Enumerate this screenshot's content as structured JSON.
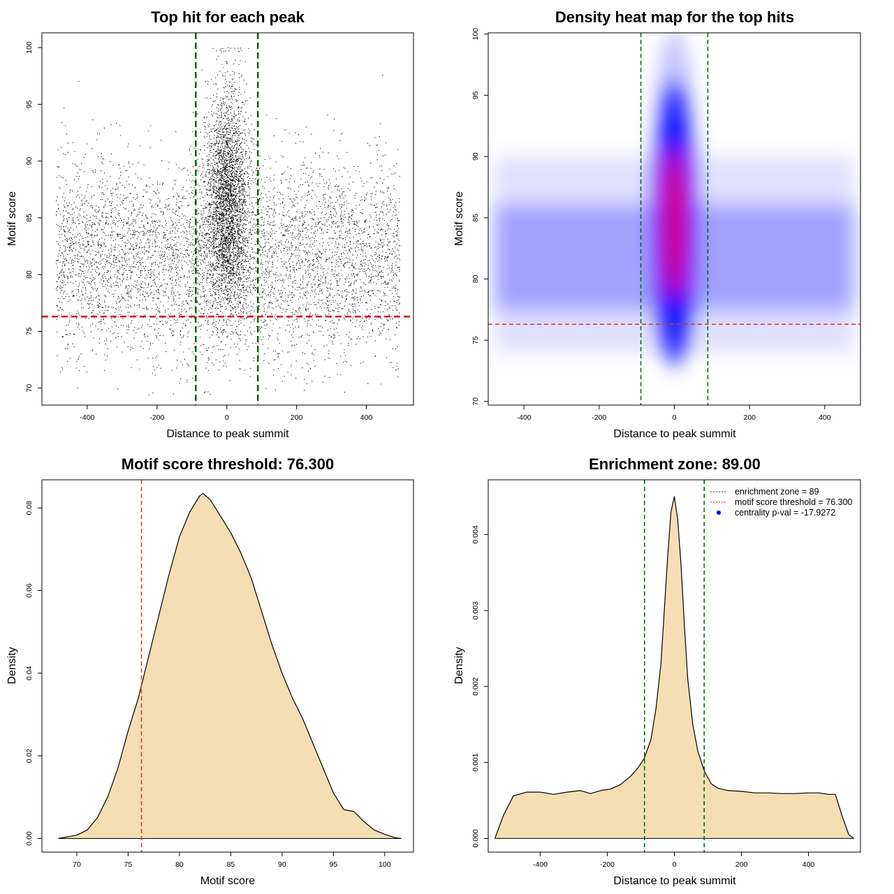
{
  "chart_data": [
    {
      "type": "scatter",
      "title": "Top hit for each peak",
      "xlabel": "Distance to peak summit",
      "ylabel": "Motif score",
      "xlim": [
        -530,
        535
      ],
      "ylim": [
        68.5,
        101.3
      ],
      "xticks": [
        -400,
        -200,
        0,
        200,
        400
      ],
      "yticks": [
        70,
        75,
        80,
        85,
        90,
        95,
        100
      ],
      "enrichment_zone": 89,
      "threshold": 76.3,
      "point_distribution": {
        "background": {
          "x_range": [
            -490,
            495
          ],
          "score_mean": 81.5,
          "score_sd": 4.3,
          "share": 0.62
        },
        "central": {
          "x_mean": 0,
          "x_sd": 30,
          "score_mean": 86.2,
          "score_sd": 4.8,
          "share": 0.38
        },
        "score_max": 100
      }
    },
    {
      "type": "heatmap",
      "title": "Density heat map for the top hits",
      "xlabel": "Distance to peak summit",
      "ylabel": "Motif score",
      "xlim": [
        -495,
        495
      ],
      "ylim": [
        69.7,
        100.1
      ],
      "xticks": [
        -400,
        -200,
        0,
        200,
        400
      ],
      "yticks": [
        70,
        75,
        80,
        85,
        90,
        95,
        100
      ],
      "enrichment_zone": 89,
      "threshold": 76.3,
      "color_scale": [
        "#ffffff",
        "#0000ff",
        "#ff0000"
      ],
      "peak": {
        "x": 0,
        "score": 84.5
      }
    },
    {
      "type": "area",
      "title": "Motif score threshold: 76.300",
      "xlabel": "Motif score",
      "ylabel": "Density",
      "xlim": [
        66.6,
        102.8
      ],
      "ylim": [
        -0.0033,
        0.0868
      ],
      "xticks": [
        70,
        75,
        80,
        85,
        90,
        95,
        100
      ],
      "yticks": [
        0.0,
        0.02,
        0.04,
        0.06,
        0.08
      ],
      "ytick_labels": [
        "0.00",
        "0.02",
        "0.04",
        "0.06",
        "0.08"
      ],
      "threshold": 76.3,
      "fill": "#f5deb3",
      "x": [
        68.2,
        70,
        71,
        72,
        73,
        74,
        75,
        76,
        77,
        78,
        79,
        80,
        81,
        82,
        82.3,
        83,
        84,
        85,
        86,
        87,
        88,
        89,
        90,
        91,
        92,
        93,
        94,
        95,
        96,
        97,
        98,
        99,
        100,
        101,
        101.6
      ],
      "y": [
        0.0,
        0.0008,
        0.002,
        0.005,
        0.01,
        0.017,
        0.026,
        0.034,
        0.044,
        0.054,
        0.064,
        0.073,
        0.079,
        0.083,
        0.0835,
        0.082,
        0.078,
        0.074,
        0.069,
        0.063,
        0.055,
        0.047,
        0.04,
        0.034,
        0.029,
        0.023,
        0.017,
        0.011,
        0.007,
        0.0065,
        0.004,
        0.002,
        0.001,
        0.0002,
        0.0
      ]
    },
    {
      "type": "area",
      "title": "Enrichment zone: 89.00",
      "xlabel": "Distance to peak summit",
      "ylabel": "Density",
      "xlim": [
        -555,
        555
      ],
      "ylim": [
        -0.00018,
        0.00472
      ],
      "xticks": [
        -400,
        -200,
        0,
        200,
        400
      ],
      "yticks": [
        0.0,
        0.001,
        0.002,
        0.003,
        0.004
      ],
      "ytick_labels": [
        "0.000",
        "0.001",
        "0.002",
        "0.003",
        "0.004"
      ],
      "enrichment_zone": 89,
      "fill": "#f5deb3",
      "legend": [
        {
          "label": "enrichment zone = 89",
          "color": "#006400",
          "style": "dotted-line"
        },
        {
          "label": "motif score threshold = 76.300",
          "color": "#ff0000",
          "style": "dotted-line"
        },
        {
          "label": "centrality p-val = -17.9272",
          "color": "#0000ff",
          "style": "point"
        }
      ],
      "legend_position": "top-right",
      "x": [
        -535,
        -510,
        -480,
        -440,
        -400,
        -360,
        -320,
        -280,
        -250,
        -220,
        -190,
        -160,
        -130,
        -110,
        -90,
        -70,
        -55,
        -40,
        -30,
        -20,
        -10,
        0,
        10,
        20,
        30,
        40,
        55,
        70,
        90,
        110,
        130,
        160,
        200,
        240,
        280,
        320,
        360,
        400,
        430,
        460,
        480,
        500,
        520,
        535
      ],
      "y": [
        0.0,
        0.0003,
        0.00056,
        0.00061,
        0.00061,
        0.00058,
        0.00061,
        0.00063,
        0.00059,
        0.00063,
        0.00065,
        0.00071,
        0.00082,
        0.00092,
        0.00105,
        0.0013,
        0.0017,
        0.0023,
        0.003,
        0.0037,
        0.0043,
        0.0045,
        0.0042,
        0.0036,
        0.0028,
        0.0021,
        0.0015,
        0.00115,
        0.00088,
        0.00072,
        0.00066,
        0.00063,
        0.00062,
        0.0006,
        0.0006,
        0.00059,
        0.00059,
        0.0006,
        0.0006,
        0.00058,
        0.00058,
        0.0003,
        5e-05,
        0.0
      ]
    }
  ]
}
